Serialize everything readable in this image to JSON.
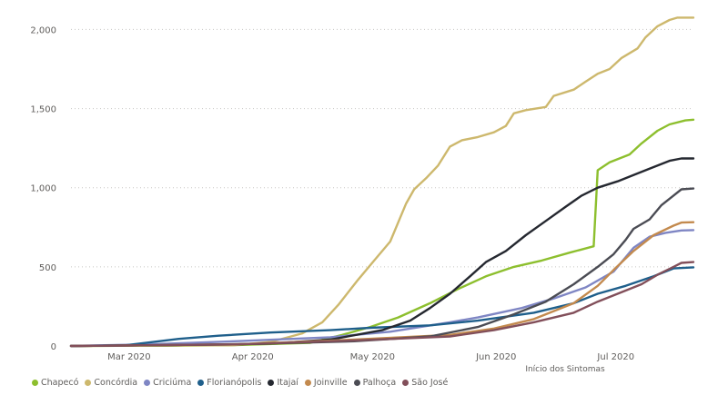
{
  "chart_data": {
    "type": "line",
    "title": "",
    "xlabel": "Início dos Sintomas",
    "ylabel": "",
    "x_start": "2020-02-20",
    "x_end": "2020-07-25",
    "x_ticks": [
      {
        "label": "Mar 2020",
        "date": "2020-03-01"
      },
      {
        "label": "Apr 2020",
        "date": "2020-04-01"
      },
      {
        "label": "May 2020",
        "date": "2020-05-01"
      },
      {
        "label": "Jun 2020",
        "date": "2020-06-01"
      },
      {
        "label": "Jul 2020",
        "date": "2020-07-01"
      }
    ],
    "ylim": [
      0,
      2100
    ],
    "y_ticks": [
      {
        "value": 0,
        "label": "0"
      },
      {
        "value": 500,
        "label": "500"
      },
      {
        "value": 1000,
        "label": "1,000"
      },
      {
        "value": 1500,
        "label": "1,500"
      },
      {
        "value": 2000,
        "label": "2,000"
      }
    ],
    "grid": true,
    "legend_position": "bottom-left",
    "series": [
      {
        "name": "Chapecó",
        "color": "#8dbf2e",
        "points": [
          [
            "2020-02-20",
            0
          ],
          [
            "2020-03-15",
            2
          ],
          [
            "2020-04-01",
            5
          ],
          [
            "2020-04-20",
            20
          ],
          [
            "2020-04-28",
            70
          ],
          [
            "2020-05-05",
            120
          ],
          [
            "2020-05-12",
            180
          ],
          [
            "2020-05-20",
            270
          ],
          [
            "2020-05-27",
            360
          ],
          [
            "2020-06-03",
            440
          ],
          [
            "2020-06-10",
            500
          ],
          [
            "2020-06-17",
            540
          ],
          [
            "2020-06-24",
            590
          ],
          [
            "2020-06-30",
            630
          ],
          [
            "2020-07-01",
            1110
          ],
          [
            "2020-07-04",
            1160
          ],
          [
            "2020-07-09",
            1210
          ],
          [
            "2020-07-12",
            1280
          ],
          [
            "2020-07-16",
            1360
          ],
          [
            "2020-07-19",
            1400
          ],
          [
            "2020-07-23",
            1425
          ],
          [
            "2020-07-25",
            1430
          ]
        ]
      },
      {
        "name": "Concórdia",
        "color": "#cdb86d",
        "points": [
          [
            "2020-02-20",
            0
          ],
          [
            "2020-04-01",
            5
          ],
          [
            "2020-04-10",
            25
          ],
          [
            "2020-04-18",
            80
          ],
          [
            "2020-04-23",
            150
          ],
          [
            "2020-04-27",
            260
          ],
          [
            "2020-05-02",
            420
          ],
          [
            "2020-05-06",
            540
          ],
          [
            "2020-05-10",
            660
          ],
          [
            "2020-05-14",
            900
          ],
          [
            "2020-05-16",
            990
          ],
          [
            "2020-05-19",
            1060
          ],
          [
            "2020-05-22",
            1140
          ],
          [
            "2020-05-25",
            1260
          ],
          [
            "2020-05-28",
            1300
          ],
          [
            "2020-06-01",
            1320
          ],
          [
            "2020-06-05",
            1350
          ],
          [
            "2020-06-08",
            1390
          ],
          [
            "2020-06-10",
            1470
          ],
          [
            "2020-06-13",
            1490
          ],
          [
            "2020-06-18",
            1510
          ],
          [
            "2020-06-20",
            1580
          ],
          [
            "2020-06-25",
            1620
          ],
          [
            "2020-06-28",
            1670
          ],
          [
            "2020-07-01",
            1720
          ],
          [
            "2020-07-04",
            1750
          ],
          [
            "2020-07-07",
            1820
          ],
          [
            "2020-07-11",
            1880
          ],
          [
            "2020-07-13",
            1950
          ],
          [
            "2020-07-16",
            2020
          ],
          [
            "2020-07-19",
            2060
          ],
          [
            "2020-07-21",
            2075
          ],
          [
            "2020-07-25",
            2075
          ]
        ]
      },
      {
        "name": "Criciúma",
        "color": "#7f86c4",
        "points": [
          [
            "2020-02-20",
            0
          ],
          [
            "2020-03-10",
            10
          ],
          [
            "2020-04-01",
            30
          ],
          [
            "2020-04-25",
            55
          ],
          [
            "2020-05-10",
            90
          ],
          [
            "2020-05-25",
            150
          ],
          [
            "2020-06-01",
            180
          ],
          [
            "2020-06-12",
            240
          ],
          [
            "2020-06-20",
            300
          ],
          [
            "2020-06-28",
            370
          ],
          [
            "2020-07-05",
            470
          ],
          [
            "2020-07-10",
            620
          ],
          [
            "2020-07-14",
            690
          ],
          [
            "2020-07-18",
            715
          ],
          [
            "2020-07-22",
            730
          ],
          [
            "2020-07-25",
            732
          ]
        ]
      },
      {
        "name": "Florianópolis",
        "color": "#1f5f8b",
        "points": [
          [
            "2020-02-20",
            0
          ],
          [
            "2020-03-05",
            5
          ],
          [
            "2020-03-18",
            45
          ],
          [
            "2020-03-28",
            65
          ],
          [
            "2020-04-10",
            85
          ],
          [
            "2020-04-25",
            100
          ],
          [
            "2020-05-05",
            115
          ],
          [
            "2020-05-20",
            130
          ],
          [
            "2020-06-01",
            160
          ],
          [
            "2020-06-15",
            210
          ],
          [
            "2020-06-25",
            270
          ],
          [
            "2020-07-01",
            330
          ],
          [
            "2020-07-08",
            380
          ],
          [
            "2020-07-15",
            440
          ],
          [
            "2020-07-20",
            490
          ],
          [
            "2020-07-25",
            497
          ]
        ]
      },
      {
        "name": "Itajaí",
        "color": "#252830",
        "points": [
          [
            "2020-02-20",
            0
          ],
          [
            "2020-03-15",
            5
          ],
          [
            "2020-04-10",
            15
          ],
          [
            "2020-04-25",
            40
          ],
          [
            "2020-05-08",
            100
          ],
          [
            "2020-05-15",
            160
          ],
          [
            "2020-05-20",
            240
          ],
          [
            "2020-05-25",
            330
          ],
          [
            "2020-05-30",
            440
          ],
          [
            "2020-06-03",
            530
          ],
          [
            "2020-06-08",
            600
          ],
          [
            "2020-06-13",
            700
          ],
          [
            "2020-06-18",
            790
          ],
          [
            "2020-06-23",
            880
          ],
          [
            "2020-06-27",
            950
          ],
          [
            "2020-07-01",
            1000
          ],
          [
            "2020-07-06",
            1040
          ],
          [
            "2020-07-10",
            1080
          ],
          [
            "2020-07-14",
            1120
          ],
          [
            "2020-07-19",
            1170
          ],
          [
            "2020-07-22",
            1185
          ],
          [
            "2020-07-25",
            1185
          ]
        ]
      },
      {
        "name": "Joinville",
        "color": "#c38a4e",
        "points": [
          [
            "2020-02-20",
            0
          ],
          [
            "2020-04-01",
            10
          ],
          [
            "2020-05-01",
            40
          ],
          [
            "2020-05-25",
            70
          ],
          [
            "2020-06-05",
            110
          ],
          [
            "2020-06-15",
            170
          ],
          [
            "2020-06-25",
            270
          ],
          [
            "2020-07-01",
            380
          ],
          [
            "2020-07-05",
            480
          ],
          [
            "2020-07-10",
            600
          ],
          [
            "2020-07-15",
            700
          ],
          [
            "2020-07-20",
            760
          ],
          [
            "2020-07-22",
            780
          ],
          [
            "2020-07-25",
            782
          ]
        ]
      },
      {
        "name": "Palhoça",
        "color": "#4b4c54",
        "points": [
          [
            "2020-02-20",
            0
          ],
          [
            "2020-04-01",
            10
          ],
          [
            "2020-05-01",
            30
          ],
          [
            "2020-05-20",
            60
          ],
          [
            "2020-06-01",
            120
          ],
          [
            "2020-06-10",
            200
          ],
          [
            "2020-06-18",
            280
          ],
          [
            "2020-06-25",
            390
          ],
          [
            "2020-07-01",
            500
          ],
          [
            "2020-07-05",
            580
          ],
          [
            "2020-07-08",
            670
          ],
          [
            "2020-07-10",
            740
          ],
          [
            "2020-07-14",
            800
          ],
          [
            "2020-07-17",
            890
          ],
          [
            "2020-07-20",
            950
          ],
          [
            "2020-07-22",
            990
          ],
          [
            "2020-07-25",
            995
          ]
        ]
      },
      {
        "name": "São José",
        "color": "#824f5a",
        "points": [
          [
            "2020-02-20",
            0
          ],
          [
            "2020-04-01",
            10
          ],
          [
            "2020-05-01",
            35
          ],
          [
            "2020-05-25",
            60
          ],
          [
            "2020-06-05",
            100
          ],
          [
            "2020-06-15",
            150
          ],
          [
            "2020-06-25",
            210
          ],
          [
            "2020-07-01",
            280
          ],
          [
            "2020-07-07",
            340
          ],
          [
            "2020-07-12",
            390
          ],
          [
            "2020-07-16",
            450
          ],
          [
            "2020-07-20",
            500
          ],
          [
            "2020-07-22",
            525
          ],
          [
            "2020-07-25",
            530
          ]
        ]
      }
    ]
  }
}
